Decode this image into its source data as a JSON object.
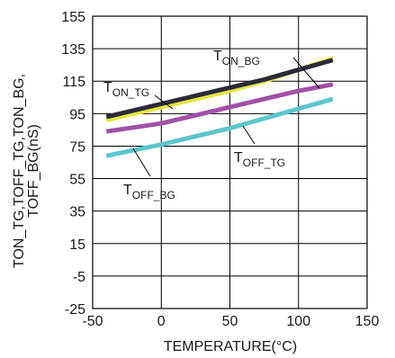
{
  "chart_data": {
    "type": "line",
    "xlabel": "TEMPERATURE(°C)",
    "ylabel_lines": [
      "TON_TG,TOFF_TG,TON_BG,",
      "TOFF_BG(nS)"
    ],
    "xlim": [
      -50,
      150
    ],
    "ylim": [
      -25,
      155
    ],
    "xticks": [
      "-50",
      "0",
      "50",
      "100",
      "150"
    ],
    "yticks": [
      "155",
      "135",
      "115",
      "95",
      "75",
      "55",
      "35",
      "15",
      "-5",
      "-25"
    ],
    "grid": true,
    "series": [
      {
        "main": "T",
        "sub": "ON_BG",
        "color": "#2a2a3a",
        "x": [
          -40,
          0,
          25,
          50,
          75,
          100,
          125
        ],
        "values": [
          93,
          101,
          106,
          111,
          116,
          122,
          128
        ]
      },
      {
        "main": "T",
        "sub": "ON_TG",
        "color": "#e6e640",
        "x": [
          -40,
          0,
          25,
          50,
          75,
          100,
          125
        ],
        "values": [
          91,
          99,
          104,
          109,
          115,
          122,
          129
        ]
      },
      {
        "main": "T",
        "sub": "OFF_TG",
        "color": "#a050a8",
        "x": [
          -40,
          0,
          25,
          50,
          75,
          100,
          125
        ],
        "values": [
          84,
          89,
          94,
          99,
          104,
          109,
          113
        ]
      },
      {
        "main": "T",
        "sub": "OFF_BG",
        "color": "#5ec4cc",
        "x": [
          -40,
          0,
          25,
          50,
          75,
          100,
          125
        ],
        "values": [
          69,
          76,
          81,
          86,
          92,
          98,
          104
        ]
      }
    ]
  }
}
